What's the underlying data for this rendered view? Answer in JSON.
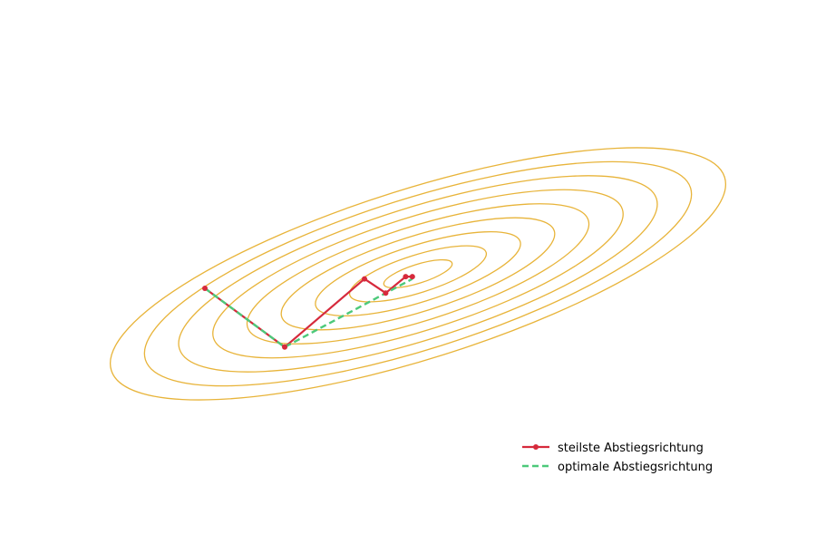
{
  "chart_data": {
    "type": "line",
    "title": "",
    "xlabel": "",
    "ylabel": "",
    "axes_visible": false,
    "grid": false,
    "legend_placement": "bottom-right",
    "contour_color": "#e8b43a",
    "contour_levels": 9,
    "series": [
      {
        "name": "steilste Abstiegsrichtung",
        "color": "#d62a3c",
        "style": "solid",
        "markers": true,
        "points": [
          [
            -0.9,
            0.0
          ],
          [
            -0.6,
            -0.25
          ],
          [
            -0.3,
            0.04
          ],
          [
            -0.22,
            -0.02
          ],
          [
            -0.145,
            0.05
          ],
          [
            -0.12,
            0.05
          ]
        ]
      },
      {
        "name": "optimale Abstiegsrichtung",
        "color": "#4cc97a",
        "style": "dashed",
        "markers": false,
        "points": [
          [
            -0.9,
            0.0
          ],
          [
            -0.6,
            -0.25
          ],
          [
            -0.12,
            0.04
          ]
        ]
      }
    ]
  }
}
